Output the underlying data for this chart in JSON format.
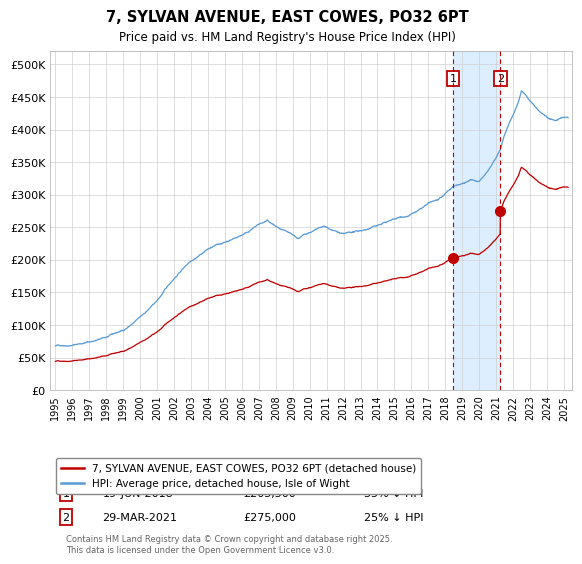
{
  "title": "7, SYLVAN AVENUE, EAST COWES, PO32 6PT",
  "subtitle": "Price paid vs. HM Land Registry's House Price Index (HPI)",
  "ylabel_ticks": [
    "£0",
    "£50K",
    "£100K",
    "£150K",
    "£200K",
    "£250K",
    "£300K",
    "£350K",
    "£400K",
    "£450K",
    "£500K"
  ],
  "ytick_values": [
    0,
    50000,
    100000,
    150000,
    200000,
    250000,
    300000,
    350000,
    400000,
    450000,
    500000
  ],
  "ylim": [
    0,
    520000
  ],
  "xlim_start": 1994.7,
  "xlim_end": 2025.5,
  "hpi_color": "#5b9bd5",
  "price_color": "#c00000",
  "shade_color": "#ddeeff",
  "sale1_date": 2018.47,
  "sale1_price": 203500,
  "sale2_date": 2021.25,
  "sale2_price": 275000,
  "legend_line1": "7, SYLVAN AVENUE, EAST COWES, PO32 6PT (detached house)",
  "legend_line2": "HPI: Average price, detached house, Isle of Wight",
  "annotation1_date": "19-JUN-2018",
  "annotation1_price": "£203,500",
  "annotation1_hpi": "35% ↓ HPI",
  "annotation2_date": "29-MAR-2021",
  "annotation2_price": "£275,000",
  "annotation2_hpi": "25% ↓ HPI",
  "footer": "Contains HM Land Registry data © Crown copyright and database right 2025.\nThis data is licensed under the Open Government Licence v3.0.",
  "background_color": "#ffffff",
  "grid_color": "#d0d0d0"
}
